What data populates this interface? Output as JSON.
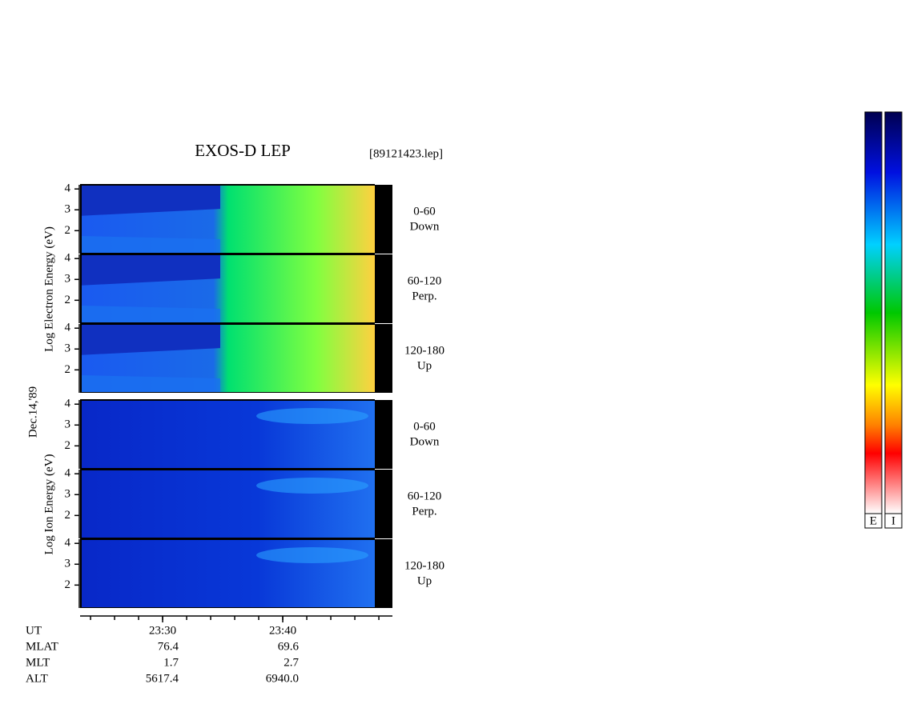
{
  "title": "EXOS-D LEP",
  "file": "[89121423.lep]",
  "date_label": "Dec.14,'89",
  "ylim": [
    0.9,
    4.2
  ],
  "yticks": [
    2,
    3,
    4
  ],
  "xlim": [
    1403.13,
    1429.13
  ],
  "xticks": [
    {
      "value": 1410,
      "label": "23:30"
    },
    {
      "value": 1420,
      "label": "23:40"
    }
  ],
  "x_minor_ticks": [
    1404,
    1406,
    1408,
    1410,
    1412,
    1414,
    1416,
    1418,
    1420,
    1422,
    1424,
    1426,
    1428
  ],
  "groups": [
    {
      "ylabel": "Log  Electron  Energy (eV)",
      "panels": [
        {
          "angle": "0-60",
          "direction": "Down"
        },
        {
          "angle": "60-120",
          "direction": "Perp."
        },
        {
          "angle": "120-180",
          "direction": "Up"
        }
      ]
    },
    {
      "ylabel": "Log  Ion  Energy (eV)",
      "panels": [
        {
          "angle": "0-60",
          "direction": "Down"
        },
        {
          "angle": "60-120",
          "direction": "Perp."
        },
        {
          "angle": "120-180",
          "direction": "Up"
        }
      ]
    }
  ],
  "orbit": {
    "labels": [
      "UT",
      "MLAT",
      "MLT",
      "ALT"
    ],
    "columns": [
      [
        "76.4",
        "1.7",
        "5617.4"
      ],
      [
        "69.6",
        "2.7",
        "6940.0"
      ]
    ]
  },
  "colorbars": [
    "E",
    "I"
  ]
}
